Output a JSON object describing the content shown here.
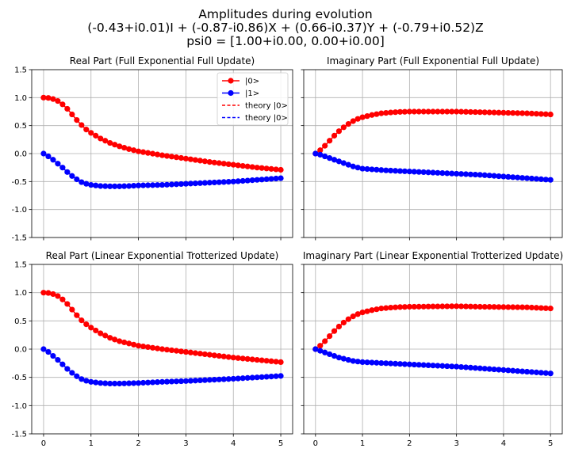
{
  "figure": {
    "title_lines": [
      "Amplitudes during evolution",
      "(-0.43+i0.01)I + (-0.87-i0.86)X + (0.66-i0.37)Y + (-0.79+i0.52)Z",
      "psi0 = [1.00+i0.00, 0.00+i0.00]"
    ]
  },
  "colors": {
    "state0": "#ff0000",
    "state1": "#0000ff",
    "grid": "#b0b0b0",
    "axes": "#000000"
  },
  "chart_data": [
    {
      "type": "line",
      "title": "Real Part (Full Exponential Full Update)",
      "xlim": [
        -0.25,
        5.25
      ],
      "ylim": [
        -1.5,
        1.5
      ],
      "xticks": [
        0,
        1,
        2,
        3,
        4,
        5
      ],
      "yticks": [
        -1.5,
        -1.0,
        -0.5,
        0.0,
        0.5,
        1.0,
        1.5
      ],
      "xtick_labels": [
        "0",
        "1",
        "2",
        "3",
        "4",
        "5"
      ],
      "ytick_labels": [
        "-1.5",
        "-1.0",
        "-0.5",
        "0.0",
        "0.5",
        "1.0",
        "1.5"
      ],
      "show_xtick_labels": false,
      "show_ytick_labels": true,
      "grid": true,
      "legend_position": "upper right",
      "legend": [
        {
          "label": "|0>",
          "style": "line-marker",
          "color": "#ff0000"
        },
        {
          "label": "|1>",
          "style": "line-marker",
          "color": "#0000ff"
        },
        {
          "label": "theory |0>",
          "style": "dashed",
          "color": "#ff0000"
        },
        {
          "label": "theory |0>",
          "style": "dashed",
          "color": "#0000ff"
        }
      ],
      "series": [
        {
          "name": "|0>",
          "color": "#ff0000",
          "keypoints": [
            [
              0,
              1.0
            ],
            [
              0.1,
              0.995
            ],
            [
              0.2,
              0.975
            ],
            [
              0.3,
              0.94
            ],
            [
              0.4,
              0.88
            ],
            [
              0.5,
              0.8
            ],
            [
              0.6,
              0.7
            ],
            [
              0.7,
              0.6
            ],
            [
              0.8,
              0.51
            ],
            [
              0.9,
              0.43
            ],
            [
              1.0,
              0.37
            ],
            [
              1.2,
              0.27
            ],
            [
              1.4,
              0.19
            ],
            [
              1.6,
              0.13
            ],
            [
              1.8,
              0.08
            ],
            [
              2.0,
              0.04
            ],
            [
              2.5,
              -0.03
            ],
            [
              3.0,
              -0.09
            ],
            [
              3.5,
              -0.15
            ],
            [
              4.0,
              -0.2
            ],
            [
              4.5,
              -0.25
            ],
            [
              5.0,
              -0.29
            ]
          ]
        },
        {
          "name": "|1>",
          "color": "#0000ff",
          "keypoints": [
            [
              0,
              0.0
            ],
            [
              0.1,
              -0.05
            ],
            [
              0.2,
              -0.11
            ],
            [
              0.3,
              -0.18
            ],
            [
              0.4,
              -0.25
            ],
            [
              0.5,
              -0.33
            ],
            [
              0.6,
              -0.4
            ],
            [
              0.7,
              -0.46
            ],
            [
              0.8,
              -0.51
            ],
            [
              0.9,
              -0.54
            ],
            [
              1.0,
              -0.56
            ],
            [
              1.2,
              -0.58
            ],
            [
              1.4,
              -0.585
            ],
            [
              1.6,
              -0.585
            ],
            [
              1.8,
              -0.58
            ],
            [
              2.0,
              -0.57
            ],
            [
              2.5,
              -0.56
            ],
            [
              3.0,
              -0.54
            ],
            [
              3.5,
              -0.52
            ],
            [
              4.0,
              -0.5
            ],
            [
              4.5,
              -0.47
            ],
            [
              5.0,
              -0.44
            ]
          ]
        }
      ]
    },
    {
      "type": "line",
      "title": "Imaginary Part (Full Exponential Full Update)",
      "xlim": [
        -0.25,
        5.25
      ],
      "ylim": [
        -1.5,
        1.5
      ],
      "xticks": [
        0,
        1,
        2,
        3,
        4,
        5
      ],
      "yticks": [
        -1.5,
        -1.0,
        -0.5,
        0.0,
        0.5,
        1.0,
        1.5
      ],
      "xtick_labels": [
        "0",
        "1",
        "2",
        "3",
        "4",
        "5"
      ],
      "ytick_labels": [
        "-1.5",
        "-1.0",
        "-0.5",
        "0.0",
        "0.5",
        "1.0",
        "1.5"
      ],
      "show_xtick_labels": false,
      "show_ytick_labels": false,
      "grid": true,
      "series": [
        {
          "name": "|0>",
          "color": "#ff0000",
          "keypoints": [
            [
              0,
              0.0
            ],
            [
              0.1,
              0.06
            ],
            [
              0.2,
              0.14
            ],
            [
              0.3,
              0.23
            ],
            [
              0.4,
              0.32
            ],
            [
              0.5,
              0.4
            ],
            [
              0.6,
              0.47
            ],
            [
              0.7,
              0.53
            ],
            [
              0.8,
              0.58
            ],
            [
              0.9,
              0.62
            ],
            [
              1.0,
              0.65
            ],
            [
              1.2,
              0.69
            ],
            [
              1.4,
              0.72
            ],
            [
              1.6,
              0.735
            ],
            [
              1.8,
              0.745
            ],
            [
              2.0,
              0.75
            ],
            [
              2.5,
              0.75
            ],
            [
              3.0,
              0.75
            ],
            [
              3.5,
              0.74
            ],
            [
              4.0,
              0.73
            ],
            [
              4.5,
              0.72
            ],
            [
              5.0,
              0.7
            ]
          ]
        },
        {
          "name": "|1>",
          "color": "#0000ff",
          "keypoints": [
            [
              0,
              0.0
            ],
            [
              0.1,
              -0.02
            ],
            [
              0.2,
              -0.05
            ],
            [
              0.3,
              -0.08
            ],
            [
              0.4,
              -0.11
            ],
            [
              0.5,
              -0.14
            ],
            [
              0.6,
              -0.17
            ],
            [
              0.7,
              -0.2
            ],
            [
              0.8,
              -0.23
            ],
            [
              0.9,
              -0.25
            ],
            [
              1.0,
              -0.27
            ],
            [
              1.5,
              -0.3
            ],
            [
              2.0,
              -0.32
            ],
            [
              2.5,
              -0.34
            ],
            [
              3.0,
              -0.36
            ],
            [
              3.5,
              -0.38
            ],
            [
              4.0,
              -0.41
            ],
            [
              4.5,
              -0.44
            ],
            [
              5.0,
              -0.47
            ]
          ]
        }
      ]
    },
    {
      "type": "line",
      "title": "Real Part (Linear Exponential Trotterized Update)",
      "xlim": [
        -0.25,
        5.25
      ],
      "ylim": [
        -1.5,
        1.5
      ],
      "xticks": [
        0,
        1,
        2,
        3,
        4,
        5
      ],
      "yticks": [
        -1.5,
        -1.0,
        -0.5,
        0.0,
        0.5,
        1.0,
        1.5
      ],
      "xtick_labels": [
        "0",
        "1",
        "2",
        "3",
        "4",
        "5"
      ],
      "ytick_labels": [
        "-1.5",
        "-1.0",
        "-0.5",
        "0.0",
        "0.5",
        "1.0",
        "1.5"
      ],
      "show_xtick_labels": true,
      "show_ytick_labels": true,
      "grid": true,
      "series": [
        {
          "name": "|0>",
          "color": "#ff0000",
          "keypoints": [
            [
              0,
              1.0
            ],
            [
              0.1,
              0.995
            ],
            [
              0.2,
              0.975
            ],
            [
              0.3,
              0.94
            ],
            [
              0.4,
              0.88
            ],
            [
              0.5,
              0.8
            ],
            [
              0.6,
              0.7
            ],
            [
              0.7,
              0.6
            ],
            [
              0.8,
              0.51
            ],
            [
              0.9,
              0.44
            ],
            [
              1.0,
              0.38
            ],
            [
              1.2,
              0.28
            ],
            [
              1.4,
              0.2
            ],
            [
              1.6,
              0.14
            ],
            [
              1.8,
              0.1
            ],
            [
              2.0,
              0.06
            ],
            [
              2.5,
              0.0
            ],
            [
              3.0,
              -0.05
            ],
            [
              3.5,
              -0.1
            ],
            [
              4.0,
              -0.15
            ],
            [
              4.5,
              -0.19
            ],
            [
              5.0,
              -0.23
            ]
          ]
        },
        {
          "name": "|1>",
          "color": "#0000ff",
          "keypoints": [
            [
              0,
              0.0
            ],
            [
              0.1,
              -0.05
            ],
            [
              0.2,
              -0.12
            ],
            [
              0.3,
              -0.19
            ],
            [
              0.4,
              -0.27
            ],
            [
              0.5,
              -0.35
            ],
            [
              0.6,
              -0.42
            ],
            [
              0.7,
              -0.48
            ],
            [
              0.8,
              -0.53
            ],
            [
              0.9,
              -0.56
            ],
            [
              1.0,
              -0.58
            ],
            [
              1.2,
              -0.6
            ],
            [
              1.4,
              -0.61
            ],
            [
              1.6,
              -0.61
            ],
            [
              1.8,
              -0.605
            ],
            [
              2.0,
              -0.6
            ],
            [
              2.5,
              -0.58
            ],
            [
              3.0,
              -0.565
            ],
            [
              3.5,
              -0.545
            ],
            [
              4.0,
              -0.525
            ],
            [
              4.5,
              -0.5
            ],
            [
              5.0,
              -0.475
            ]
          ]
        }
      ]
    },
    {
      "type": "line",
      "title": "Imaginary Part (Linear Exponential Trotterized Update)",
      "xlim": [
        -0.25,
        5.25
      ],
      "ylim": [
        -1.5,
        1.5
      ],
      "xticks": [
        0,
        1,
        2,
        3,
        4,
        5
      ],
      "yticks": [
        -1.5,
        -1.0,
        -0.5,
        0.0,
        0.5,
        1.0,
        1.5
      ],
      "xtick_labels": [
        "0",
        "1",
        "2",
        "3",
        "4",
        "5"
      ],
      "ytick_labels": [
        "-1.5",
        "-1.0",
        "-0.5",
        "0.0",
        "0.5",
        "1.0",
        "1.5"
      ],
      "show_xtick_labels": true,
      "show_ytick_labels": false,
      "grid": true,
      "series": [
        {
          "name": "|0>",
          "color": "#ff0000",
          "keypoints": [
            [
              0,
              0.0
            ],
            [
              0.1,
              0.06
            ],
            [
              0.2,
              0.14
            ],
            [
              0.3,
              0.23
            ],
            [
              0.4,
              0.32
            ],
            [
              0.5,
              0.4
            ],
            [
              0.6,
              0.47
            ],
            [
              0.7,
              0.53
            ],
            [
              0.8,
              0.58
            ],
            [
              0.9,
              0.62
            ],
            [
              1.0,
              0.65
            ],
            [
              1.2,
              0.69
            ],
            [
              1.4,
              0.72
            ],
            [
              1.6,
              0.735
            ],
            [
              1.8,
              0.745
            ],
            [
              2.0,
              0.75
            ],
            [
              2.5,
              0.755
            ],
            [
              3.0,
              0.76
            ],
            [
              3.5,
              0.75
            ],
            [
              4.0,
              0.745
            ],
            [
              4.5,
              0.74
            ],
            [
              5.0,
              0.72
            ]
          ]
        },
        {
          "name": "|1>",
          "color": "#0000ff",
          "keypoints": [
            [
              0,
              0.0
            ],
            [
              0.1,
              -0.03
            ],
            [
              0.2,
              -0.06
            ],
            [
              0.3,
              -0.09
            ],
            [
              0.4,
              -0.12
            ],
            [
              0.5,
              -0.15
            ],
            [
              0.6,
              -0.17
            ],
            [
              0.7,
              -0.19
            ],
            [
              0.8,
              -0.21
            ],
            [
              0.9,
              -0.22
            ],
            [
              1.0,
              -0.23
            ],
            [
              1.5,
              -0.25
            ],
            [
              2.0,
              -0.27
            ],
            [
              2.5,
              -0.29
            ],
            [
              3.0,
              -0.31
            ],
            [
              3.5,
              -0.34
            ],
            [
              4.0,
              -0.37
            ],
            [
              4.5,
              -0.4
            ],
            [
              5.0,
              -0.43
            ]
          ]
        }
      ]
    }
  ]
}
